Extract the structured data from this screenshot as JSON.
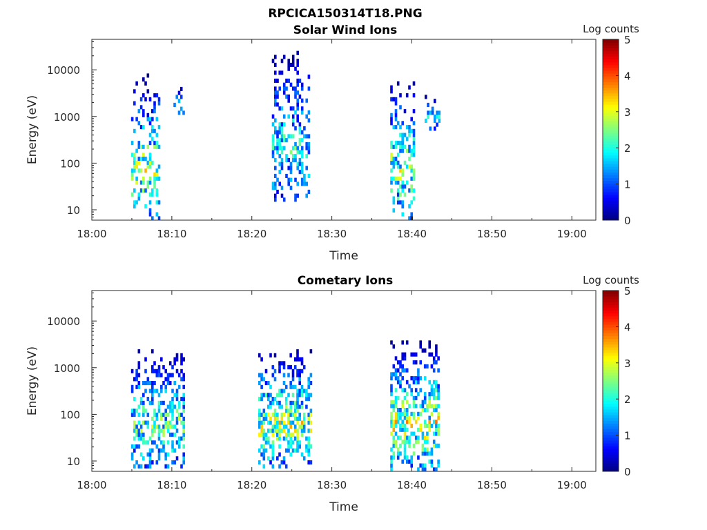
{
  "figure": {
    "title": "RPCICA150314T18.PNG"
  },
  "chart_data": [
    {
      "type": "heatmap",
      "title": "Solar Wind Ions",
      "xlabel": "Time",
      "ylabel": "Energy (eV)",
      "xticks": [
        "18:00",
        "18:10",
        "18:20",
        "18:30",
        "18:40",
        "18:50",
        "19:00"
      ],
      "xlim_min": [
        0,
        63
      ],
      "yscale": "log",
      "ylim": [
        6,
        45000
      ],
      "yticks": [
        10,
        100,
        1000,
        10000
      ],
      "ytick_labels": [
        "10",
        "100",
        "1000",
        "10000"
      ],
      "colorbar": {
        "label": "Log counts",
        "range": [
          0,
          5
        ],
        "ticks": [
          "0",
          "1",
          "2",
          "3",
          "4",
          "5"
        ]
      },
      "bursts": [
        {
          "t_start_min": 4.9,
          "t_end_min": 8.3,
          "e_min": 6,
          "e_max": 7000,
          "peak": 3.3
        },
        {
          "t_start_min": 10.2,
          "t_end_min": 11.4,
          "e_min": 900,
          "e_max": 4000,
          "peak": 2.2
        },
        {
          "t_start_min": 22.5,
          "t_end_min": 27.2,
          "e_min": 15,
          "e_max": 25000,
          "peak": 2.5
        },
        {
          "t_start_min": 37.3,
          "t_end_min": 40.2,
          "e_min": 6,
          "e_max": 6000,
          "peak": 3.2
        },
        {
          "t_start_min": 41.6,
          "t_end_min": 43.4,
          "e_min": 500,
          "e_max": 2600,
          "peak": 2.2
        }
      ]
    },
    {
      "type": "heatmap",
      "title": "Cometary Ions",
      "xlabel": "Time",
      "ylabel": "Energy (eV)",
      "xticks": [
        "18:00",
        "18:10",
        "18:20",
        "18:30",
        "18:40",
        "18:50",
        "19:00"
      ],
      "xlim_min": [
        0,
        63
      ],
      "yscale": "log",
      "ylim": [
        6,
        45000
      ],
      "yticks": [
        10,
        100,
        1000,
        10000
      ],
      "ytick_labels": [
        "10",
        "100",
        "1000",
        "10000"
      ],
      "colorbar": {
        "label": "Log counts",
        "range": [
          0,
          5
        ],
        "ticks": [
          "0",
          "1",
          "2",
          "3",
          "4",
          "5"
        ]
      },
      "bursts": [
        {
          "t_start_min": 4.9,
          "t_end_min": 11.6,
          "e_min": 7,
          "e_max": 2400,
          "peak": 2.9
        },
        {
          "t_start_min": 20.8,
          "t_end_min": 27.3,
          "e_min": 7,
          "e_max": 2400,
          "peak": 3.4
        },
        {
          "t_start_min": 37.3,
          "t_end_min": 43.4,
          "e_min": 6,
          "e_max": 3300,
          "peak": 3.6
        }
      ]
    }
  ]
}
